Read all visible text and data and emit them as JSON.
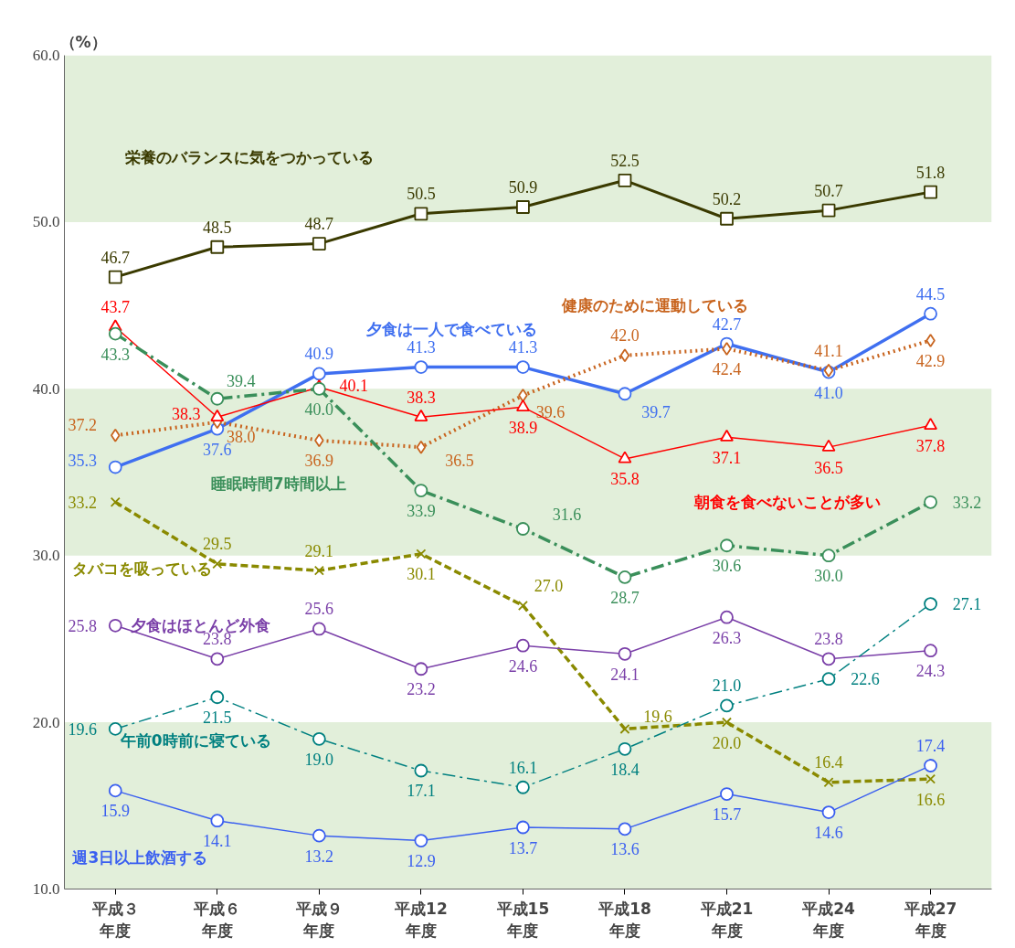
{
  "chart_data": {
    "type": "line",
    "ylabel": "（%）",
    "categories": [
      "平成３年度",
      "平成６年度",
      "平成９年度",
      "平成12年度",
      "平成15年度",
      "平成18年度",
      "平成21年度",
      "平成24年度",
      "平成27年度"
    ],
    "ylim": [
      10,
      60
    ],
    "yticks": [
      {
        "value": 10,
        "label": "10.0"
      },
      {
        "value": 20,
        "label": "20.0"
      },
      {
        "value": 30,
        "label": "30.0"
      },
      {
        "value": 40,
        "label": "40.0"
      },
      {
        "value": 50,
        "label": "50.0"
      },
      {
        "value": 60,
        "label": "60.0"
      }
    ],
    "grid": false,
    "bands": [
      {
        "axis": "y",
        "from": 10,
        "to": 20,
        "color": "#e2efda"
      },
      {
        "axis": "y",
        "from": 30,
        "to": 40,
        "color": "#e2efda"
      },
      {
        "axis": "y",
        "from": 50,
        "to": 60,
        "color": "#e2efda"
      }
    ],
    "series": [
      {
        "name": "栄養のバランスに気をつかっている",
        "color": "#3a3a00",
        "marker": "square",
        "line_style": "solid",
        "values": [
          46.7,
          48.5,
          48.7,
          50.5,
          50.9,
          52.5,
          50.2,
          50.7,
          51.8
        ],
        "value_labels": [
          "46.7",
          "48.5",
          "48.7",
          "50.5",
          "50.9",
          "52.5",
          "50.2",
          "50.7",
          "51.8"
        ]
      },
      {
        "name": "夕食は一人で食べている",
        "color": "#3f6ff0",
        "marker": "circle",
        "line_style": "solid",
        "values": [
          35.3,
          37.6,
          40.9,
          41.3,
          41.3,
          39.7,
          42.7,
          41.0,
          44.5
        ],
        "value_labels": [
          "35.3",
          "37.6",
          "40.9",
          "41.3",
          "41.3",
          "39.7",
          "42.7",
          "41.0",
          "44.5"
        ]
      },
      {
        "name": "健康のために運動している",
        "color": "#c8641e",
        "marker": "diamond",
        "line_style": "dotted",
        "values": [
          37.2,
          38.0,
          36.9,
          36.5,
          39.6,
          42.0,
          42.4,
          41.1,
          42.9
        ],
        "value_labels": [
          "37.2",
          "38.0",
          "36.9",
          "36.5",
          "39.6",
          "42.0",
          "42.4",
          "41.1",
          "42.9"
        ]
      },
      {
        "name": "朝食を食べないことが多い",
        "color": "#ff0000",
        "marker": "triangle",
        "line_style": "solid",
        "values": [
          43.7,
          38.3,
          40.1,
          38.3,
          38.9,
          35.8,
          37.1,
          36.5,
          37.8
        ],
        "value_labels": [
          "43.7",
          "38.3",
          "40.1",
          "38.3",
          "38.9",
          "35.8",
          "37.1",
          "36.5",
          "37.8"
        ]
      },
      {
        "name": "睡眠時間7時間以上",
        "color": "#3a8f5a",
        "marker": "circle",
        "line_style": "dashdot",
        "values": [
          43.3,
          39.4,
          40.0,
          33.9,
          31.6,
          28.7,
          30.6,
          30.0,
          33.2
        ],
        "value_labels": [
          "43.3",
          "39.4",
          "40.0",
          "33.9",
          "31.6",
          "28.7",
          "30.6",
          "30.0",
          "33.2"
        ]
      },
      {
        "name": "タバコを吸っている",
        "color": "#8a8a00",
        "marker": "cross",
        "line_style": "dashed",
        "values": [
          33.2,
          29.5,
          29.1,
          30.1,
          27.0,
          19.6,
          20.0,
          16.4,
          16.6
        ],
        "value_labels": [
          "33.2",
          "29.5",
          "29.1",
          "30.1",
          "27.0",
          "19.6",
          "20.0",
          "16.4",
          "16.6"
        ]
      },
      {
        "name": "夕食はほとんど外食",
        "color": "#7a3fa8",
        "marker": "circle",
        "line_style": "solid",
        "values": [
          25.8,
          23.8,
          25.6,
          23.2,
          24.6,
          24.1,
          26.3,
          23.8,
          24.3
        ],
        "value_labels": [
          "25.8",
          "23.8",
          "25.6",
          "23.2",
          "24.6",
          "24.1",
          "26.3",
          "23.8",
          "24.3"
        ]
      },
      {
        "name": "午前0時前に寝ている",
        "color": "#008080",
        "marker": "circle",
        "line_style": "dashdot",
        "values": [
          19.6,
          21.5,
          19.0,
          17.1,
          16.1,
          18.4,
          21.0,
          22.6,
          27.1
        ],
        "value_labels": [
          "19.6",
          "21.5",
          "19.0",
          "17.1",
          "16.1",
          "18.4",
          "21.0",
          "22.6",
          "27.1"
        ]
      },
      {
        "name": "週3日以上飲酒する",
        "color": "#3a5ff0",
        "marker": "circle",
        "line_style": "solid",
        "values": [
          15.9,
          14.1,
          13.2,
          12.9,
          13.7,
          13.6,
          15.7,
          14.6,
          17.4
        ],
        "value_labels": [
          "15.9",
          "14.1",
          "13.2",
          "12.9",
          "13.7",
          "13.6",
          "15.7",
          "14.6",
          "17.4"
        ]
      }
    ]
  }
}
